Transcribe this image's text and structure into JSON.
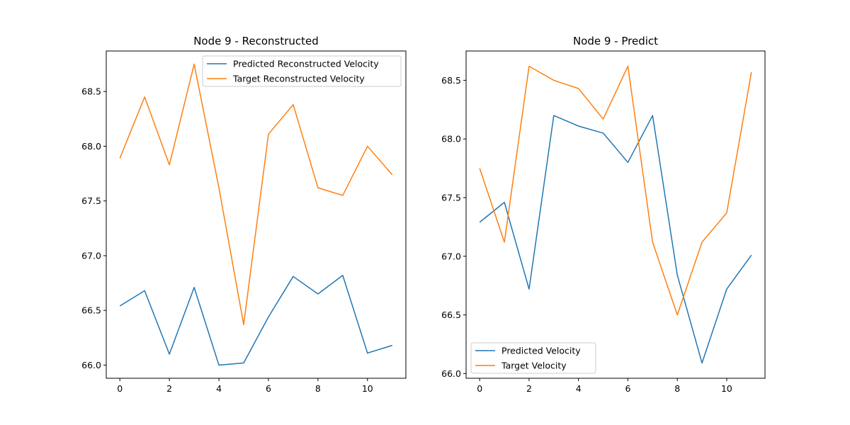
{
  "chart_data": [
    {
      "type": "line",
      "title": "Node 9 - Reconstructed",
      "xlabel": "",
      "ylabel": "",
      "x": [
        0,
        1,
        2,
        3,
        4,
        5,
        6,
        7,
        8,
        9,
        10,
        11
      ],
      "xlim": [
        -0.55,
        11.55
      ],
      "ylim": [
        65.88,
        68.87
      ],
      "xticks": [
        "0",
        "2",
        "4",
        "6",
        "8",
        "10"
      ],
      "yticks": [
        "66.0",
        "66.5",
        "67.0",
        "67.5",
        "68.0",
        "68.5"
      ],
      "grid": false,
      "legend_position": "upper right",
      "series": [
        {
          "name": "Predicted Reconstructed Velocity",
          "color": "#1f77b4",
          "values": [
            66.54,
            66.68,
            66.1,
            66.71,
            66.0,
            66.02,
            66.44,
            66.81,
            66.65,
            66.82,
            66.11,
            66.18
          ]
        },
        {
          "name": "Target Reconstructed Velocity",
          "color": "#ff7f0e",
          "values": [
            67.89,
            68.45,
            67.83,
            68.75,
            67.62,
            66.37,
            68.11,
            68.38,
            67.62,
            67.55,
            68.0,
            67.74
          ]
        }
      ]
    },
    {
      "type": "line",
      "title": "Node 9 - Predict",
      "xlabel": "",
      "ylabel": "",
      "x": [
        0,
        1,
        2,
        3,
        4,
        5,
        6,
        7,
        8,
        9,
        10,
        11
      ],
      "xlim": [
        -0.55,
        11.55
      ],
      "ylim": [
        65.96,
        68.75
      ],
      "xticks": [
        "0",
        "2",
        "4",
        "6",
        "8",
        "10"
      ],
      "yticks": [
        "66.0",
        "66.5",
        "67.0",
        "67.5",
        "68.0",
        "68.5"
      ],
      "grid": false,
      "legend_position": "lower left",
      "series": [
        {
          "name": "Predicted Velocity",
          "color": "#1f77b4",
          "values": [
            67.29,
            67.46,
            66.72,
            68.2,
            68.11,
            68.05,
            67.8,
            68.2,
            66.84,
            66.09,
            66.72,
            67.01
          ]
        },
        {
          "name": "Target Velocity",
          "color": "#ff7f0e",
          "values": [
            67.75,
            67.12,
            68.62,
            68.5,
            68.43,
            68.17,
            68.62,
            67.12,
            66.5,
            67.12,
            67.37,
            68.57
          ]
        }
      ]
    }
  ]
}
